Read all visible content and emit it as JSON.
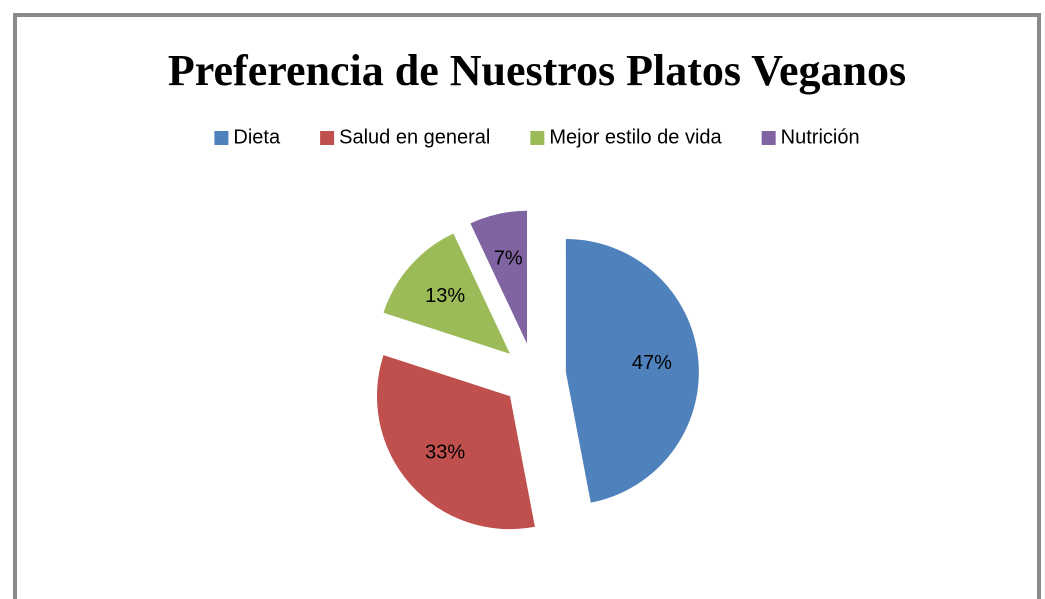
{
  "chart_data": {
    "type": "pie",
    "title": "Preferencia de Nuestros Platos Veganos",
    "categories": [
      "Dieta",
      "Salud en general",
      "Mejor estilo de vida",
      "Nutrición"
    ],
    "values": [
      47,
      33,
      13,
      7
    ],
    "value_labels": [
      "47%",
      "33%",
      "13%",
      "7%"
    ],
    "colors": [
      "#4f81bd",
      "#c0504d",
      "#9bbb59",
      "#8064a2"
    ],
    "legend": "top",
    "exploded": true
  }
}
